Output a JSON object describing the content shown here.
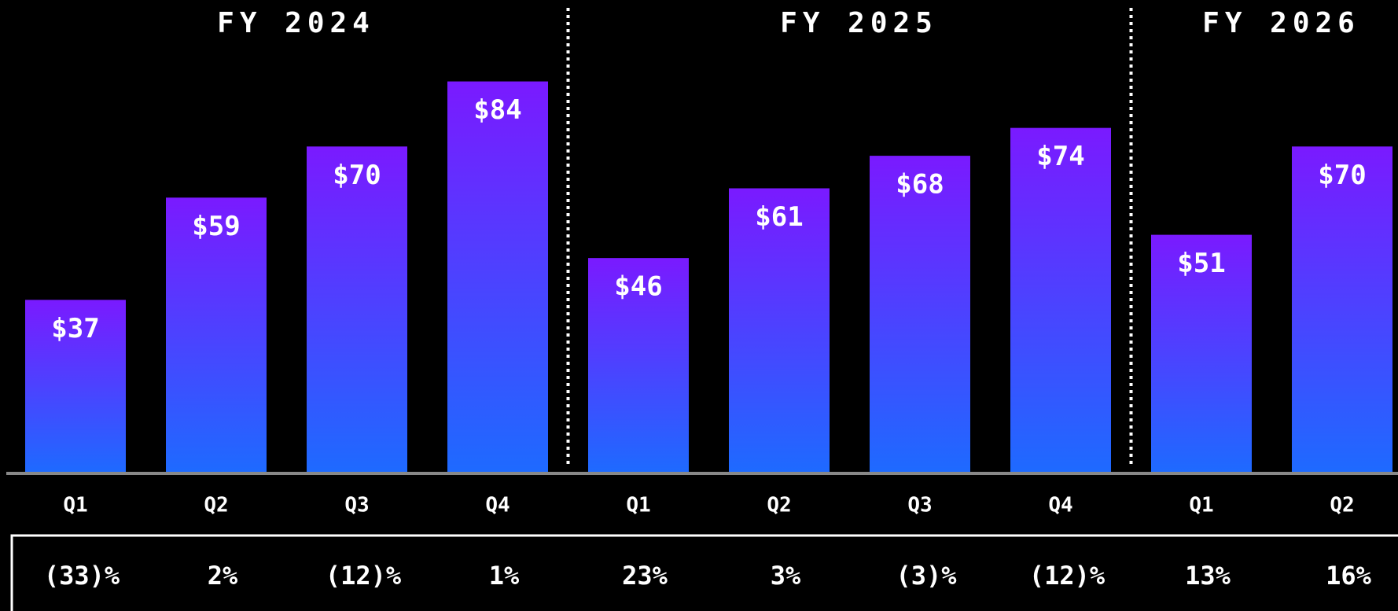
{
  "chart_data": [
    {
      "type": "bar",
      "title": "FY 2024",
      "categories": [
        "Q1",
        "Q2",
        "Q3",
        "Q4"
      ],
      "values": [
        37,
        59,
        70,
        84
      ],
      "value_labels": [
        "$37",
        "$59",
        "$70",
        "$84"
      ],
      "growth_labels": [
        "(33)%",
        "2%",
        "(12)%",
        "1%"
      ],
      "ylim": [
        0,
        100
      ],
      "gradient": [
        "#7a1aff",
        "#1e6aff"
      ]
    },
    {
      "type": "bar",
      "title": "FY 2025",
      "categories": [
        "Q1",
        "Q2",
        "Q3",
        "Q4"
      ],
      "values": [
        46,
        61,
        68,
        74
      ],
      "value_labels": [
        "$46",
        "$61",
        "$68",
        "$74"
      ],
      "growth_labels": [
        "23%",
        "3%",
        "(3)%",
        "(12)%"
      ],
      "ylim": [
        0,
        100
      ],
      "gradient": [
        "#7a1aff",
        "#1e6aff"
      ]
    },
    {
      "type": "bar",
      "title": "FY 2026",
      "categories": [
        "Q1",
        "Q2"
      ],
      "values": [
        51,
        70
      ],
      "value_labels": [
        "$51",
        "$70"
      ],
      "growth_labels": [
        "13%",
        "16%"
      ],
      "ylim": [
        0,
        100
      ],
      "gradient": [
        "#7a1aff",
        "#1e6aff"
      ]
    }
  ]
}
